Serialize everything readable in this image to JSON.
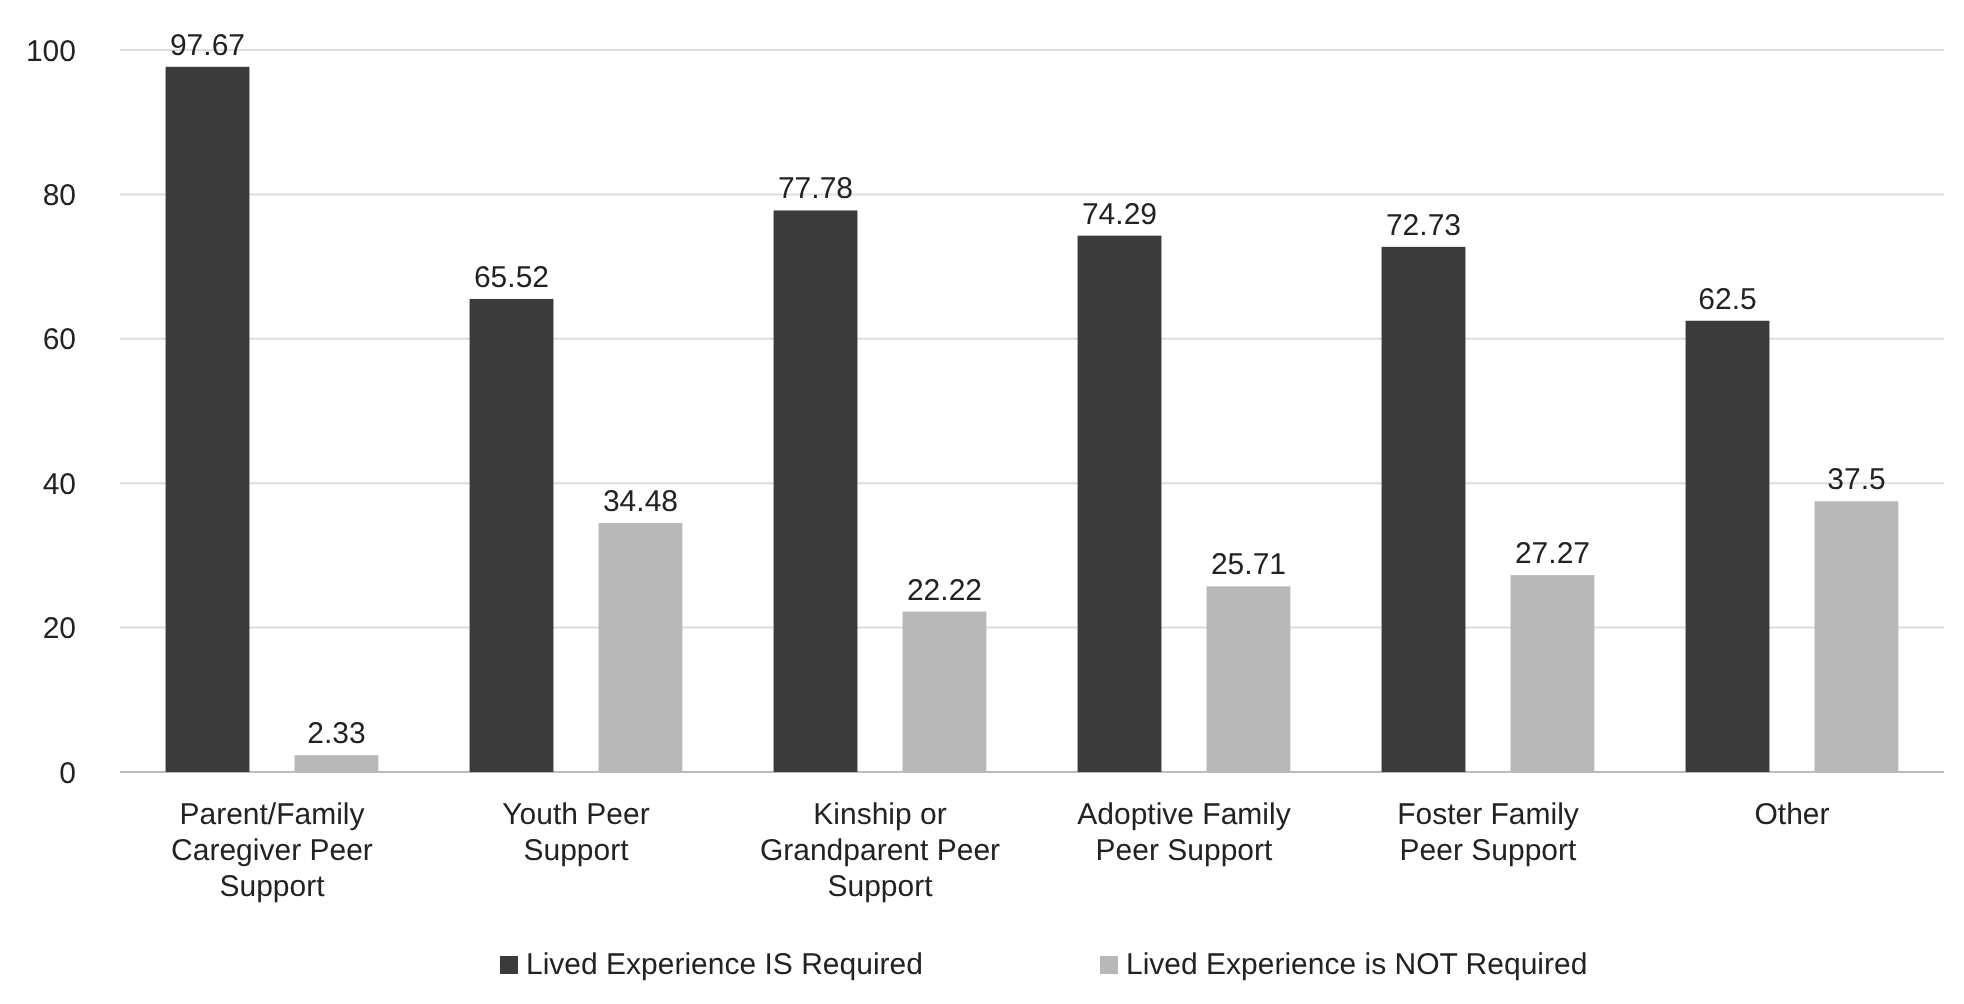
{
  "chart_data": {
    "type": "bar",
    "categories": [
      "Parent/Family Caregiver Peer Support",
      "Youth Peer Support",
      "Kinship or Grandparent Peer Support",
      "Adoptive Family Peer Support",
      "Foster Family Peer Support",
      "Other"
    ],
    "series": [
      {
        "name": "Lived Experience IS Required",
        "color": "#3b3b3b",
        "values": [
          97.67,
          65.52,
          77.78,
          74.29,
          72.73,
          62.5
        ]
      },
      {
        "name": "Lived Experience is NOT Required",
        "color": "#b8b8b8",
        "values": [
          2.33,
          34.48,
          22.22,
          25.71,
          27.27,
          37.5
        ]
      }
    ],
    "ylim": [
      0,
      100
    ],
    "yticks": [
      0,
      20,
      40,
      60,
      80,
      100
    ],
    "grid": "y",
    "legend": "bottom",
    "data_labels": true
  }
}
